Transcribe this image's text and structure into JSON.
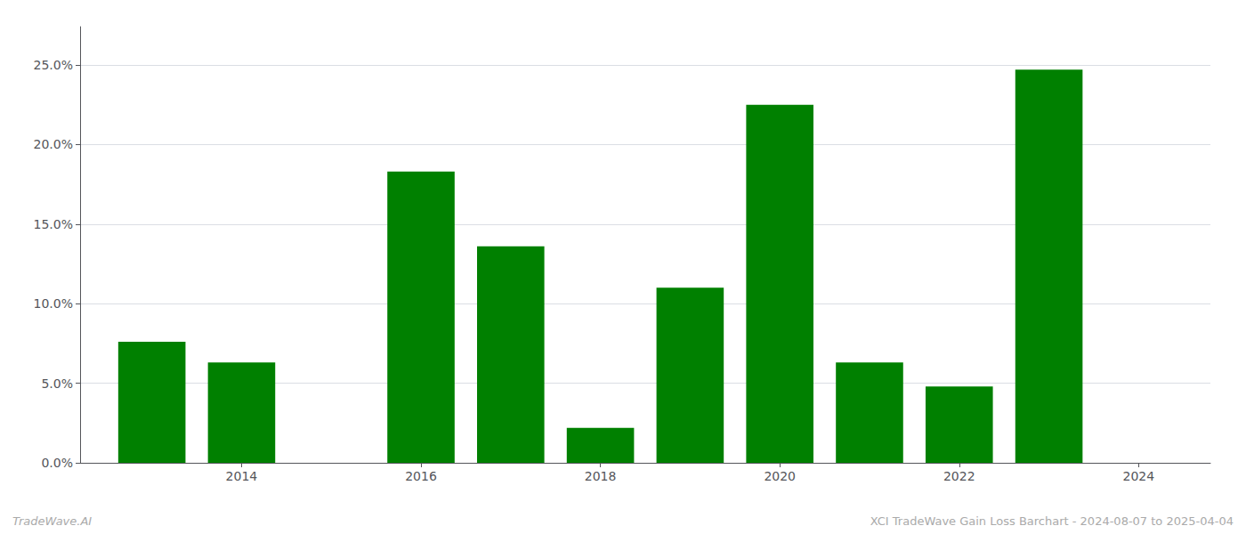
{
  "chart_data": {
    "type": "bar",
    "x": [
      2013,
      2014,
      2016,
      2017,
      2018,
      2019,
      2020,
      2021,
      2022,
      2023
    ],
    "values": [
      0.076,
      0.063,
      0.183,
      0.136,
      0.022,
      0.11,
      0.225,
      0.063,
      0.048,
      0.247
    ],
    "color": "#008000",
    "xlim": [
      2012.2,
      2024.8
    ],
    "xticks": [
      2014,
      2016,
      2018,
      2020,
      2022,
      2024
    ],
    "ylim": [
      0,
      0.274
    ],
    "yticks": [
      {
        "value": 0.0,
        "label": "0.0%"
      },
      {
        "value": 0.05,
        "label": "5.0%"
      },
      {
        "value": 0.1,
        "label": "10.0%"
      },
      {
        "value": 0.15,
        "label": "15.0%"
      },
      {
        "value": 0.2,
        "label": "20.0%"
      },
      {
        "value": 0.25,
        "label": "25.0%"
      }
    ],
    "grid": true,
    "annotations": [
      "TradeWave.AI",
      "XCI TradeWave Gain Loss Barchart - 2024-08-07 to 2025-04-04"
    ]
  }
}
